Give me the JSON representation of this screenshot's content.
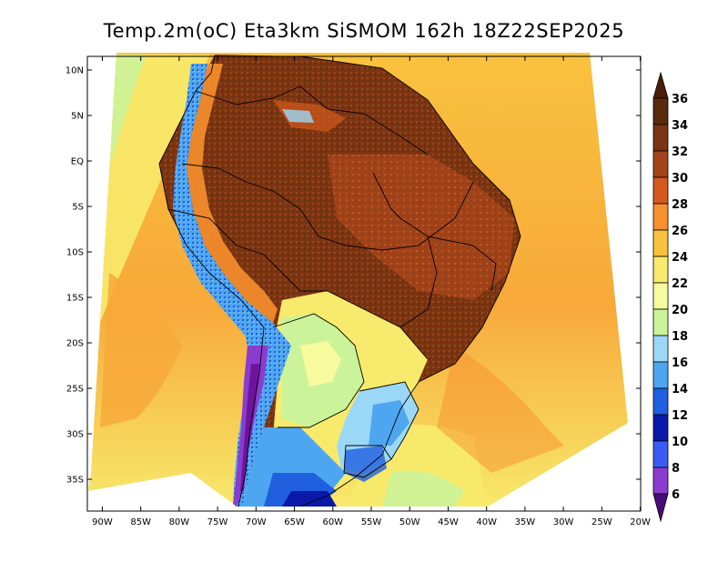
{
  "title": "Temp.2m(oC) Eta3km SiSMOM 162h 18Z22SEP2025",
  "map": {
    "variable": "2 m temperature",
    "units": "oC",
    "lon_range": [
      -91,
      -19
    ],
    "lat_range": [
      -38,
      12
    ],
    "x_ticks": [
      {
        "value": -90,
        "label": "90W"
      },
      {
        "value": -85,
        "label": "85W"
      },
      {
        "value": -80,
        "label": "80W"
      },
      {
        "value": -75,
        "label": "75W"
      },
      {
        "value": -70,
        "label": "70W"
      },
      {
        "value": -65,
        "label": "65W"
      },
      {
        "value": -60,
        "label": "60W"
      },
      {
        "value": -55,
        "label": "55W"
      },
      {
        "value": -50,
        "label": "50W"
      },
      {
        "value": -45,
        "label": "45W"
      },
      {
        "value": -40,
        "label": "40W"
      },
      {
        "value": -35,
        "label": "35W"
      },
      {
        "value": -30,
        "label": "30W"
      },
      {
        "value": -25,
        "label": "25W"
      },
      {
        "value": -20,
        "label": "20W"
      }
    ],
    "y_ticks": [
      {
        "value": 10,
        "label": "10N"
      },
      {
        "value": 5,
        "label": "5N"
      },
      {
        "value": 0,
        "label": "EQ"
      },
      {
        "value": -5,
        "label": "5S"
      },
      {
        "value": -10,
        "label": "10S"
      },
      {
        "value": -15,
        "label": "15S"
      },
      {
        "value": -20,
        "label": "20S"
      },
      {
        "value": -25,
        "label": "25S"
      },
      {
        "value": -30,
        "label": "30S"
      },
      {
        "value": -35,
        "label": "35S"
      }
    ]
  },
  "colorbar": {
    "levels": [
      {
        "label": "36",
        "color": "#5a2a0c"
      },
      {
        "label": "34",
        "color": "#7a3512"
      },
      {
        "label": "32",
        "color": "#a4441a"
      },
      {
        "label": "30",
        "color": "#d35a1c"
      },
      {
        "label": "28",
        "color": "#f7902e"
      },
      {
        "label": "26",
        "color": "#f9c23e"
      },
      {
        "label": "24",
        "color": "#f7ea6c"
      },
      {
        "label": "22",
        "color": "#f8fa9e"
      },
      {
        "label": "20",
        "color": "#cbf39a"
      },
      {
        "label": "18",
        "color": "#9bd8f8"
      },
      {
        "label": "16",
        "color": "#4fa6f0"
      },
      {
        "label": "14",
        "color": "#1f5fe0"
      },
      {
        "label": "12",
        "color": "#0a19a8"
      },
      {
        "label": "10",
        "color": "#3a5cf2"
      },
      {
        "label": "8",
        "color": "#8c3bd0"
      },
      {
        "label": "6",
        "color": "#6c149c"
      }
    ],
    "top_cap_color": "#4a1e08",
    "bottom_cap_color": "#4a0a7a"
  }
}
